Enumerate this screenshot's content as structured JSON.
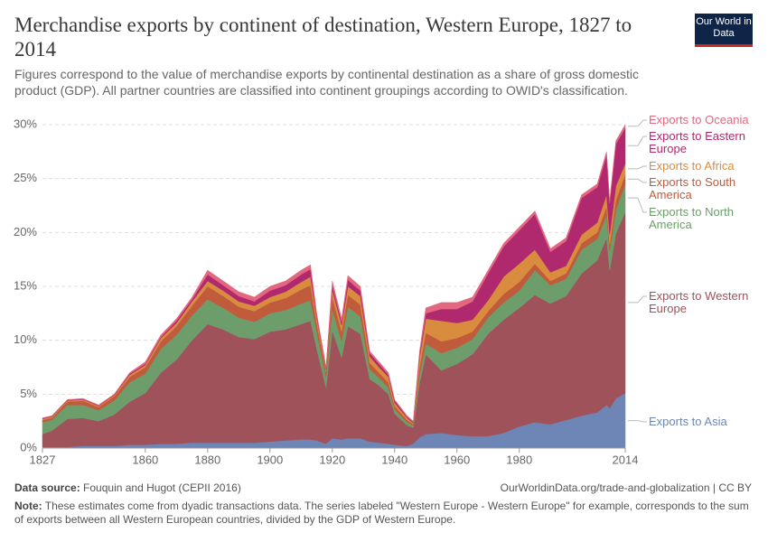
{
  "chart_data": {
    "type": "stacked_area",
    "title": "Merchandise exports by continent of destination, Western Europe, 1827 to 2014",
    "subtitle": "Figures correspond to the value of merchandise exports by continental destination as a share of gross domestic product (GDP). All partner countries are classified into continent groupings according to OWID's classification.",
    "logo": "Our World in Data",
    "source_label": "Data source:",
    "source": "Fouquin and Hugot (CEPII 2016)",
    "url": "OurWorldinData.org/trade-and-globalization | CC BY",
    "note_label": "Note:",
    "note": "These estimates come from dyadic transactions data. The series labeled \"Western Europe - Western Europe\" for example, corresponds to the sum of exports between all Western European countries, divided by the GDP of Western Europe.",
    "x": [
      1827,
      1830,
      1835,
      1840,
      1845,
      1850,
      1855,
      1860,
      1865,
      1870,
      1875,
      1880,
      1885,
      1890,
      1895,
      1900,
      1905,
      1910,
      1913,
      1915,
      1918,
      1920,
      1923,
      1925,
      1929,
      1932,
      1935,
      1938,
      1940,
      1944,
      1946,
      1948,
      1950,
      1955,
      1960,
      1965,
      1970,
      1975,
      1980,
      1985,
      1990,
      1995,
      2000,
      2005,
      2008,
      2009,
      2011,
      2014
    ],
    "xlim": [
      1827,
      2014
    ],
    "xticks": [
      1827,
      1860,
      1880,
      1900,
      1920,
      1940,
      1960,
      1980,
      2014
    ],
    "ylim": [
      0,
      30
    ],
    "yticks": [
      {
        "value": 0,
        "label": "0%"
      },
      {
        "value": 5,
        "label": "5%"
      },
      {
        "value": 10,
        "label": "10%"
      },
      {
        "value": 15,
        "label": "15%"
      },
      {
        "value": 20,
        "label": "20%"
      },
      {
        "value": 25,
        "label": "25%"
      },
      {
        "value": 30,
        "label": "30%"
      }
    ],
    "grid": true,
    "series": [
      {
        "name": "Exports to Asia",
        "color": "#6d86b5",
        "values": [
          0.1,
          0.1,
          0.1,
          0.2,
          0.2,
          0.2,
          0.3,
          0.3,
          0.4,
          0.4,
          0.5,
          0.5,
          0.5,
          0.5,
          0.5,
          0.6,
          0.7,
          0.8,
          0.8,
          0.7,
          0.4,
          0.9,
          0.8,
          0.9,
          0.9,
          0.6,
          0.5,
          0.4,
          0.3,
          0.2,
          0.4,
          1.0,
          1.3,
          1.4,
          1.2,
          1.1,
          1.1,
          1.4,
          2.0,
          2.4,
          2.2,
          2.6,
          3.0,
          3.3,
          4.0,
          3.7,
          4.6,
          5.1
        ]
      },
      {
        "name": "Exports to Western Europe",
        "color": "#a0525a",
        "values": [
          1.2,
          1.5,
          2.6,
          2.6,
          2.3,
          2.9,
          4.0,
          4.8,
          6.6,
          7.8,
          9.5,
          11.0,
          10.5,
          9.8,
          9.6,
          10.2,
          10.3,
          10.7,
          11.0,
          8.5,
          5.2,
          10.0,
          7.6,
          10.4,
          9.7,
          5.8,
          5.3,
          4.6,
          2.9,
          1.9,
          1.5,
          5.0,
          7.4,
          5.8,
          6.6,
          7.6,
          9.5,
          10.5,
          11.0,
          11.8,
          11.2,
          11.5,
          13.2,
          14.1,
          15.5,
          12.8,
          15.3,
          16.8
        ]
      },
      {
        "name": "Exports to North America",
        "color": "#6e9d6c",
        "values": [
          1.1,
          1.0,
          1.3,
          1.2,
          1.0,
          1.3,
          1.8,
          1.8,
          2.2,
          2.3,
          2.3,
          2.3,
          2.0,
          1.8,
          1.6,
          1.7,
          1.8,
          1.9,
          1.9,
          1.6,
          1.0,
          2.0,
          1.5,
          1.8,
          1.6,
          0.9,
          0.7,
          0.6,
          0.4,
          0.3,
          0.2,
          0.8,
          1.0,
          1.6,
          1.5,
          1.4,
          1.5,
          1.6,
          1.6,
          2.3,
          1.7,
          1.6,
          2.2,
          2.0,
          2.1,
          1.8,
          2.2,
          2.6
        ]
      },
      {
        "name": "Exports to South America",
        "color": "#c05b3c",
        "values": [
          0.2,
          0.2,
          0.3,
          0.4,
          0.3,
          0.4,
          0.5,
          0.6,
          0.7,
          0.8,
          0.9,
          1.2,
          1.1,
          1.0,
          1.0,
          1.0,
          1.1,
          1.3,
          1.4,
          0.8,
          0.5,
          1.1,
          0.9,
          1.1,
          1.1,
          0.6,
          0.5,
          0.5,
          0.3,
          0.2,
          0.1,
          0.7,
          1.0,
          1.1,
          0.9,
          0.7,
          0.6,
          0.8,
          0.8,
          0.6,
          0.4,
          0.5,
          0.6,
          0.6,
          0.8,
          0.6,
          0.9,
          0.9
        ]
      },
      {
        "name": "Exports to Africa",
        "color": "#d98c3e",
        "values": [
          0.1,
          0.1,
          0.1,
          0.1,
          0.1,
          0.1,
          0.2,
          0.2,
          0.3,
          0.3,
          0.4,
          0.5,
          0.5,
          0.5,
          0.5,
          0.5,
          0.6,
          0.7,
          0.8,
          0.5,
          0.2,
          0.7,
          0.6,
          0.8,
          0.8,
          0.6,
          0.5,
          0.5,
          0.3,
          0.2,
          0.1,
          0.9,
          1.3,
          1.9,
          1.4,
          1.1,
          1.0,
          1.6,
          1.7,
          1.3,
          0.8,
          0.7,
          0.8,
          0.9,
          1.1,
          0.9,
          1.3,
          1.0
        ]
      },
      {
        "name": "Exports to Eastern Europe",
        "color": "#b0286e",
        "values": [
          0.05,
          0.05,
          0.05,
          0.05,
          0.05,
          0.05,
          0.1,
          0.1,
          0.1,
          0.2,
          0.2,
          0.6,
          0.5,
          0.5,
          0.4,
          0.6,
          0.6,
          0.7,
          0.7,
          0.2,
          0.1,
          0.4,
          0.3,
          0.6,
          0.5,
          0.3,
          0.3,
          0.2,
          0.2,
          0.1,
          0.1,
          0.3,
          0.5,
          1.1,
          1.3,
          1.7,
          2.5,
          2.8,
          3.1,
          3.3,
          1.9,
          2.3,
          3.4,
          3.3,
          3.7,
          2.9,
          3.9,
          3.3
        ]
      },
      {
        "name": "Exports to Oceania",
        "color": "#e2677f",
        "values": [
          0.05,
          0.05,
          0.05,
          0.05,
          0.05,
          0.05,
          0.1,
          0.2,
          0.2,
          0.2,
          0.2,
          0.4,
          0.4,
          0.4,
          0.4,
          0.4,
          0.4,
          0.4,
          0.4,
          0.2,
          0.1,
          0.4,
          0.3,
          0.4,
          0.4,
          0.2,
          0.2,
          0.2,
          0.1,
          0.1,
          0.1,
          0.3,
          0.5,
          0.6,
          0.6,
          0.4,
          0.3,
          0.3,
          0.3,
          0.3,
          0.3,
          0.3,
          0.3,
          0.3,
          0.3,
          0.3,
          0.3,
          0.3
        ]
      }
    ]
  }
}
